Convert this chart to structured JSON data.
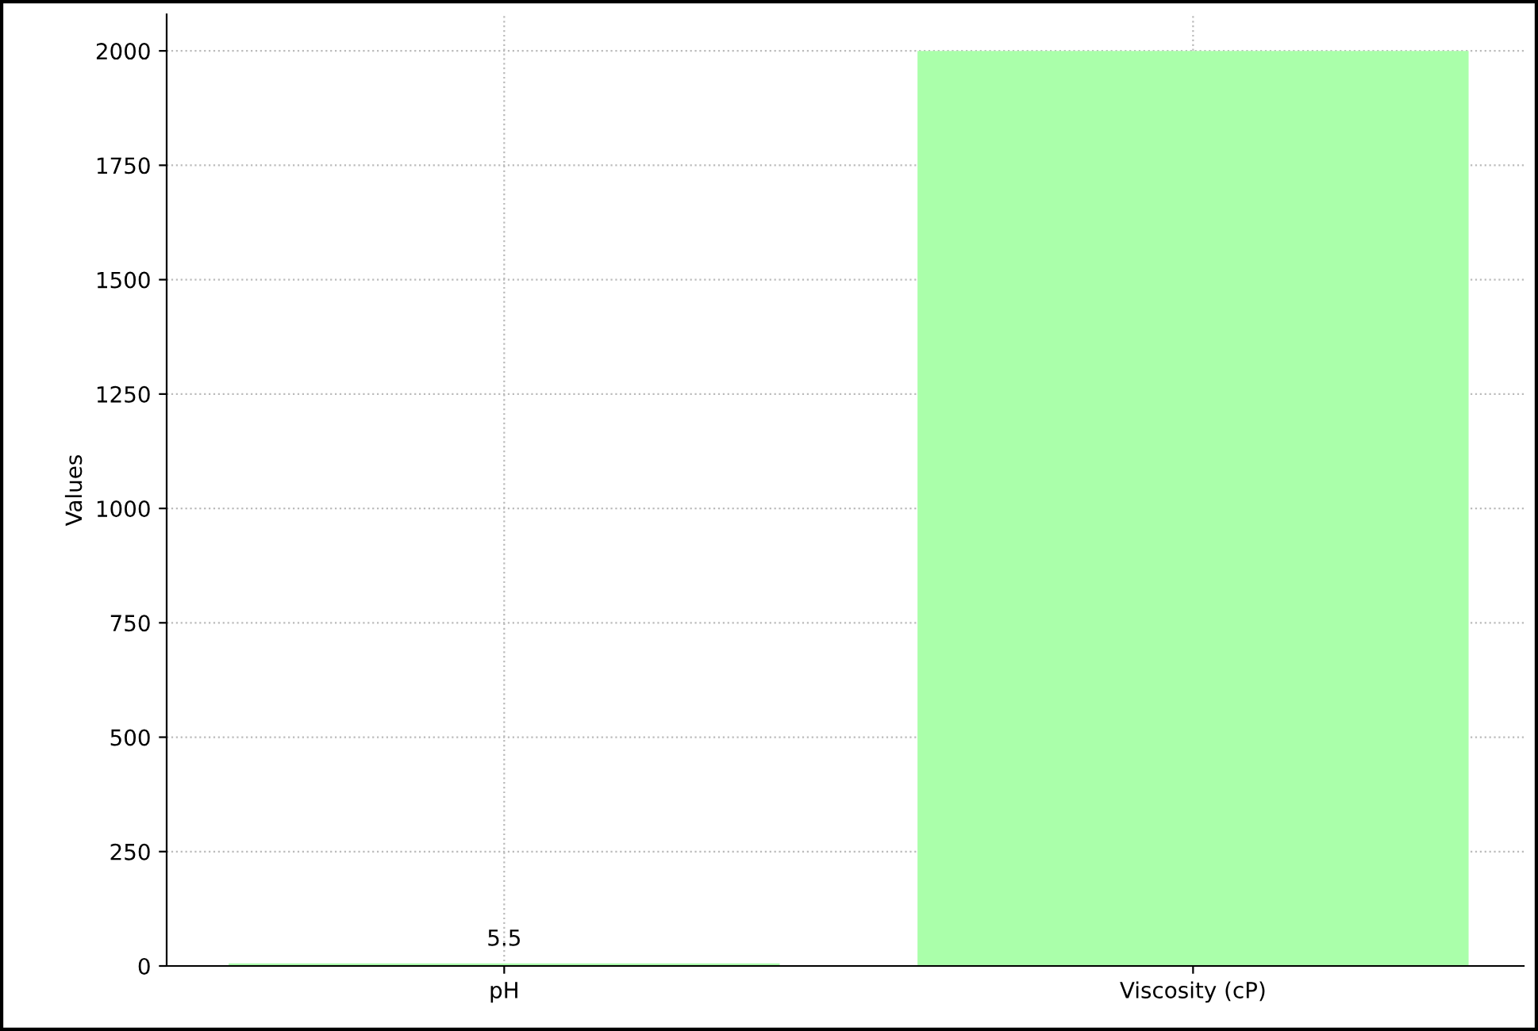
{
  "chart_data": {
    "type": "bar",
    "ylabel": "Values",
    "categories": [
      "pH",
      "Viscosity (cP)"
    ],
    "values": [
      5.5,
      2000
    ],
    "value_labels": [
      "5.5",
      null
    ],
    "color": "#aaffaa",
    "ylim": [
      0,
      2080
    ],
    "yticks": [
      0,
      250,
      500,
      750,
      1000,
      1250,
      1500,
      1750,
      2000
    ],
    "grid": true
  }
}
